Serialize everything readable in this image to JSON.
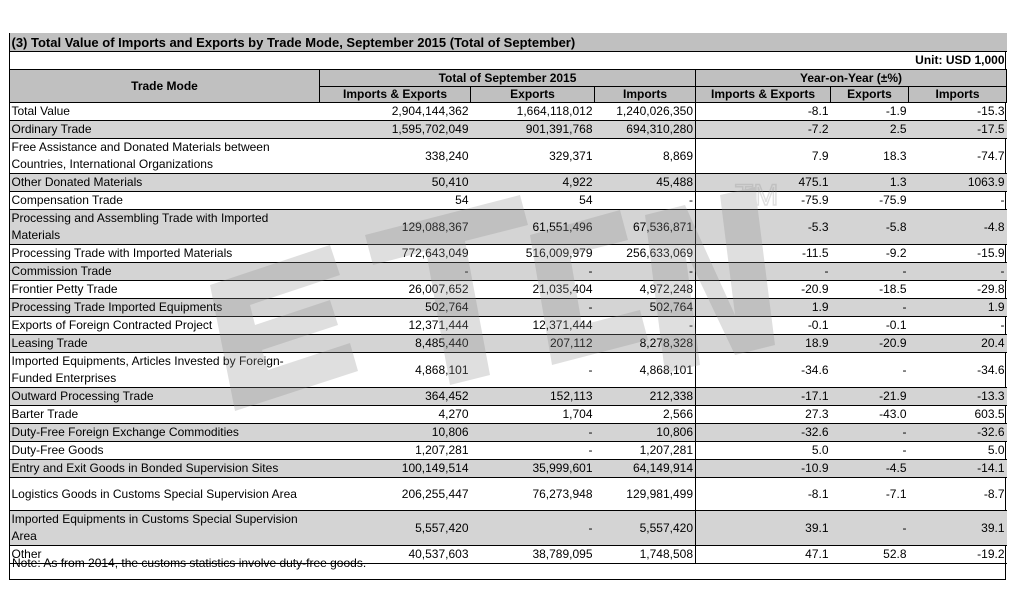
{
  "title": "(3) Total Value of Imports and Exports by Trade Mode, September 2015 (Total of September)",
  "unit": "Unit: USD 1,000",
  "headers": {
    "trade_mode": "Trade Mode",
    "group_total": "Total of September 2015",
    "group_yoy": "Year-on-Year (±%)",
    "imports_exports": "Imports & Exports",
    "exports": "Exports",
    "imports": "Imports"
  },
  "rows": [
    {
      "name": "Total Value",
      "ie": "2,904,144,362",
      "ex": "1,664,118,012",
      "im": "1,240,026,350",
      "yie": "-8.1",
      "yex": "-1.9",
      "yim": "-15.3"
    },
    {
      "name": "Ordinary Trade",
      "ie": "1,595,702,049",
      "ex": "901,391,768",
      "im": "694,310,280",
      "yie": "-7.2",
      "yex": "2.5",
      "yim": "-17.5"
    },
    {
      "name": "Free Assistance and Donated Materials between Countries, International Organizations",
      "ie": "338,240",
      "ex": "329,371",
      "im": "8,869",
      "yie": "7.9",
      "yex": "18.3",
      "yim": "-74.7"
    },
    {
      "name": "Other Donated Materials",
      "ie": "50,410",
      "ex": "4,922",
      "im": "45,488",
      "yie": "475.1",
      "yex": "1.3",
      "yim": "1063.9"
    },
    {
      "name": "Compensation Trade",
      "ie": "54",
      "ex": "54",
      "im": "-",
      "yie": "-75.9",
      "yex": "-75.9",
      "yim": "-"
    },
    {
      "name": "Processing and Assembling Trade with Imported Materials",
      "ie": "129,088,367",
      "ex": "61,551,496",
      "im": "67,536,871",
      "yie": "-5.3",
      "yex": "-5.8",
      "yim": "-4.8"
    },
    {
      "name": "Processing Trade with Imported Materials",
      "ie": "772,643,049",
      "ex": "516,009,979",
      "im": "256,633,069",
      "yie": "-11.5",
      "yex": "-9.2",
      "yim": "-15.9"
    },
    {
      "name": "Commission Trade",
      "ie": "-",
      "ex": "-",
      "im": "-",
      "yie": "-",
      "yex": "-",
      "yim": "-"
    },
    {
      "name": "Frontier Petty Trade",
      "ie": "26,007,652",
      "ex": "21,035,404",
      "im": "4,972,248",
      "yie": "-20.9",
      "yex": "-18.5",
      "yim": "-29.8"
    },
    {
      "name": "Processing Trade Imported Equipments",
      "ie": "502,764",
      "ex": "-",
      "im": "502,764",
      "yie": "1.9",
      "yex": "-",
      "yim": "1.9"
    },
    {
      "name": "Exports of Foreign Contracted Project",
      "ie": "12,371,444",
      "ex": "12,371,444",
      "im": "-",
      "yie": "-0.1",
      "yex": "-0.1",
      "yim": "-"
    },
    {
      "name": "Leasing Trade",
      "ie": "8,485,440",
      "ex": "207,112",
      "im": "8,278,328",
      "yie": "18.9",
      "yex": "-20.9",
      "yim": "20.4"
    },
    {
      "name": "Imported Equipments, Articles Invested by Foreign-Funded Enterprises",
      "ie": "4,868,101",
      "ex": "-",
      "im": "4,868,101",
      "yie": "-34.6",
      "yex": "-",
      "yim": "-34.6"
    },
    {
      "name": "Outward Processing Trade",
      "ie": "364,452",
      "ex": "152,113",
      "im": "212,338",
      "yie": "-17.1",
      "yex": "-21.9",
      "yim": "-13.3"
    },
    {
      "name": "Barter Trade",
      "ie": "4,270",
      "ex": "1,704",
      "im": "2,566",
      "yie": "27.3",
      "yex": "-43.0",
      "yim": "603.5"
    },
    {
      "name": "Duty-Free Foreign Exchange Commodities",
      "ie": "10,806",
      "ex": "-",
      "im": "10,806",
      "yie": "-32.6",
      "yex": "-",
      "yim": "-32.6"
    },
    {
      "name": "Duty-Free Goods",
      "ie": "1,207,281",
      "ex": "-",
      "im": "1,207,281",
      "yie": "5.0",
      "yex": "-",
      "yim": "5.0"
    },
    {
      "name": "Entry and Exit Goods in Bonded Supervision Sites",
      "ie": "100,149,514",
      "ex": "35,999,601",
      "im": "64,149,914",
      "yie": "-10.9",
      "yex": "-4.5",
      "yim": "-14.1"
    },
    {
      "name": "Logistics Goods in Customs Special Supervision Area",
      "ie": "206,255,447",
      "ex": "76,273,948",
      "im": "129,981,499",
      "yie": "-8.1",
      "yex": "-7.1",
      "yim": "-8.7"
    },
    {
      "name": "Imported Equipments in Customs Special Supervision Area",
      "ie": "5,557,420",
      "ex": "-",
      "im": "5,557,420",
      "yie": "39.1",
      "yex": "-",
      "yim": "39.1"
    },
    {
      "name": "Other",
      "ie": "40,537,603",
      "ex": "38,789,095",
      "im": "1,748,508",
      "yie": "47.1",
      "yex": "52.8",
      "yim": "-19.2"
    }
  ],
  "note": "Note: As from 2014, the customs statistics involve duty-free goods.",
  "watermark": {
    "text": "ETCN",
    "tm": "TM",
    "color": "#909090"
  }
}
